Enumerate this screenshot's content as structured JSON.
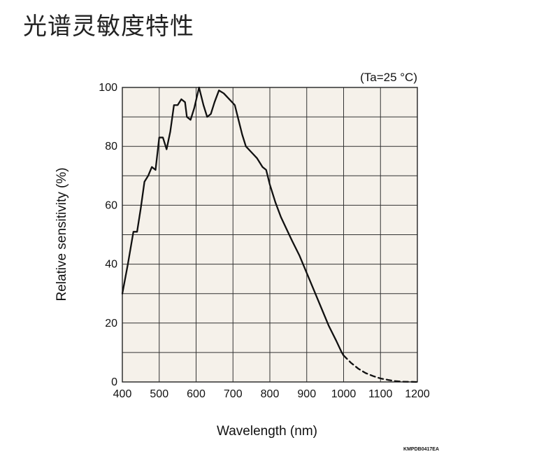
{
  "page": {
    "title": "光谱灵敏度特性"
  },
  "chart_data": {
    "type": "line",
    "title": "",
    "xlabel": "Wavelength (nm)",
    "ylabel": "Relative sensitivity (%)",
    "annotation": "(Ta=25 °C)",
    "figure_code": "KMPDB0417EA",
    "xlim": [
      400,
      1200
    ],
    "ylim": [
      0,
      100
    ],
    "x_ticks": [
      400,
      500,
      600,
      700,
      800,
      900,
      1000,
      1100,
      1200
    ],
    "y_ticks": [
      0,
      20,
      40,
      60,
      80,
      100
    ],
    "x_tick_labels": [
      "400",
      "500",
      "600",
      "700",
      "800",
      "900",
      "1000",
      "1100",
      "1200"
    ],
    "y_tick_labels": [
      "0",
      "20",
      "40",
      "60",
      "80",
      "100"
    ],
    "grid": true,
    "grid_x_step": 100,
    "grid_y_step": 10,
    "plot_background": "#f5f1ea",
    "line_color": "#111111",
    "series": [
      {
        "style": "solid",
        "points": [
          [
            400,
            30
          ],
          [
            415,
            40
          ],
          [
            430,
            51
          ],
          [
            440,
            51
          ],
          [
            450,
            59
          ],
          [
            460,
            68
          ],
          [
            470,
            70
          ],
          [
            480,
            73
          ],
          [
            490,
            72
          ],
          [
            500,
            83
          ],
          [
            510,
            83
          ],
          [
            520,
            79
          ],
          [
            530,
            85
          ],
          [
            540,
            94
          ],
          [
            550,
            94
          ],
          [
            560,
            96
          ],
          [
            570,
            95
          ],
          [
            575,
            90
          ],
          [
            585,
            89
          ],
          [
            595,
            93
          ],
          [
            608,
            100
          ],
          [
            620,
            94
          ],
          [
            630,
            90
          ],
          [
            640,
            91
          ],
          [
            650,
            95
          ],
          [
            662,
            99
          ],
          [
            675,
            98
          ],
          [
            690,
            96
          ],
          [
            705,
            94
          ],
          [
            715,
            89
          ],
          [
            725,
            84
          ],
          [
            735,
            80
          ],
          [
            750,
            78
          ],
          [
            765,
            76
          ],
          [
            780,
            73
          ],
          [
            790,
            72
          ],
          [
            800,
            67
          ],
          [
            815,
            61
          ],
          [
            830,
            56
          ],
          [
            845,
            52
          ],
          [
            860,
            48
          ],
          [
            880,
            43
          ],
          [
            900,
            37
          ],
          [
            920,
            31
          ],
          [
            940,
            25
          ],
          [
            960,
            19
          ],
          [
            980,
            14
          ],
          [
            995,
            10
          ],
          [
            1000,
            9
          ]
        ]
      },
      {
        "style": "dashed",
        "points": [
          [
            1000,
            9
          ],
          [
            1020,
            6.5
          ],
          [
            1040,
            4.5
          ],
          [
            1060,
            3
          ],
          [
            1080,
            2
          ],
          [
            1100,
            1.2
          ],
          [
            1120,
            0.7
          ],
          [
            1140,
            0.3
          ],
          [
            1160,
            0.1
          ],
          [
            1180,
            0.05
          ],
          [
            1200,
            0
          ]
        ]
      }
    ]
  }
}
